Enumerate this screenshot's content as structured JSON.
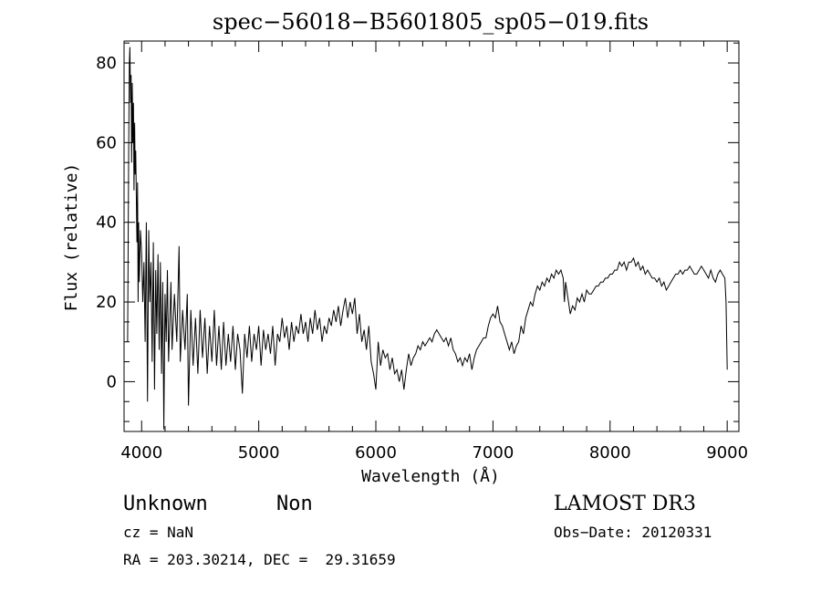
{
  "chart_data": {
    "type": "line",
    "title": "spec−56018−B5601805_sp05−019.fits",
    "xlabel": "Wavelength (Å)",
    "ylabel": "Flux (relative)",
    "xlim": [
      3850,
      9100
    ],
    "ylim": [
      -12.5,
      85.5
    ],
    "x_ticks": [
      4000,
      5000,
      6000,
      7000,
      8000,
      9000
    ],
    "y_ticks": [
      0,
      20,
      40,
      60,
      80
    ],
    "grid": false,
    "series": [
      {
        "values": [
          [
            3880,
            10
          ],
          [
            3890,
            60
          ],
          [
            3895,
            80
          ],
          [
            3900,
            84
          ],
          [
            3905,
            70
          ],
          [
            3910,
            77
          ],
          [
            3915,
            55
          ],
          [
            3920,
            75
          ],
          [
            3925,
            60
          ],
          [
            3930,
            70
          ],
          [
            3935,
            48
          ],
          [
            3940,
            65
          ],
          [
            3945,
            52
          ],
          [
            3950,
            58
          ],
          [
            3960,
            35
          ],
          [
            3965,
            50
          ],
          [
            3970,
            20
          ],
          [
            3975,
            40
          ],
          [
            3980,
            25
          ],
          [
            3990,
            38
          ],
          [
            4000,
            32
          ],
          [
            4010,
            20
          ],
          [
            4020,
            30
          ],
          [
            4030,
            10
          ],
          [
            4040,
            40
          ],
          [
            4050,
            -5
          ],
          [
            4060,
            38
          ],
          [
            4070,
            20
          ],
          [
            4080,
            30
          ],
          [
            4090,
            5
          ],
          [
            4100,
            35
          ],
          [
            4110,
            -2
          ],
          [
            4120,
            28
          ],
          [
            4130,
            12
          ],
          [
            4140,
            32
          ],
          [
            4150,
            8
          ],
          [
            4160,
            30
          ],
          [
            4170,
            2
          ],
          [
            4180,
            25
          ],
          [
            4190,
            -12
          ],
          [
            4200,
            22
          ],
          [
            4210,
            10
          ],
          [
            4220,
            28
          ],
          [
            4230,
            5
          ],
          [
            4250,
            25
          ],
          [
            4260,
            8
          ],
          [
            4280,
            22
          ],
          [
            4300,
            10
          ],
          [
            4320,
            34
          ],
          [
            4330,
            5
          ],
          [
            4350,
            18
          ],
          [
            4370,
            8
          ],
          [
            4390,
            22
          ],
          [
            4400,
            -6
          ],
          [
            4420,
            18
          ],
          [
            4440,
            4
          ],
          [
            4460,
            16
          ],
          [
            4480,
            2
          ],
          [
            4500,
            18
          ],
          [
            4520,
            6
          ],
          [
            4540,
            16
          ],
          [
            4560,
            2
          ],
          [
            4580,
            14
          ],
          [
            4600,
            5
          ],
          [
            4620,
            18
          ],
          [
            4640,
            4
          ],
          [
            4660,
            14
          ],
          [
            4680,
            3
          ],
          [
            4700,
            15
          ],
          [
            4720,
            4
          ],
          [
            4740,
            12
          ],
          [
            4760,
            5
          ],
          [
            4780,
            14
          ],
          [
            4800,
            3
          ],
          [
            4820,
            12
          ],
          [
            4840,
            8
          ],
          [
            4860,
            -3
          ],
          [
            4880,
            12
          ],
          [
            4900,
            6
          ],
          [
            4920,
            14
          ],
          [
            4940,
            5
          ],
          [
            4960,
            12
          ],
          [
            4980,
            8
          ],
          [
            5000,
            14
          ],
          [
            5020,
            4
          ],
          [
            5040,
            13
          ],
          [
            5060,
            8
          ],
          [
            5080,
            12
          ],
          [
            5100,
            7
          ],
          [
            5120,
            14
          ],
          [
            5140,
            4
          ],
          [
            5160,
            12
          ],
          [
            5180,
            10
          ],
          [
            5200,
            16
          ],
          [
            5220,
            11
          ],
          [
            5240,
            14
          ],
          [
            5260,
            8
          ],
          [
            5280,
            15
          ],
          [
            5300,
            10
          ],
          [
            5320,
            14
          ],
          [
            5340,
            12
          ],
          [
            5360,
            17
          ],
          [
            5380,
            12
          ],
          [
            5400,
            15
          ],
          [
            5420,
            10
          ],
          [
            5440,
            16
          ],
          [
            5460,
            12
          ],
          [
            5480,
            18
          ],
          [
            5500,
            13
          ],
          [
            5520,
            16
          ],
          [
            5540,
            10
          ],
          [
            5560,
            14
          ],
          [
            5580,
            12
          ],
          [
            5600,
            16
          ],
          [
            5620,
            14
          ],
          [
            5640,
            18
          ],
          [
            5660,
            15
          ],
          [
            5680,
            19
          ],
          [
            5700,
            14
          ],
          [
            5720,
            18
          ],
          [
            5740,
            21
          ],
          [
            5760,
            16
          ],
          [
            5780,
            20
          ],
          [
            5800,
            17
          ],
          [
            5820,
            21
          ],
          [
            5840,
            12
          ],
          [
            5860,
            17
          ],
          [
            5880,
            10
          ],
          [
            5900,
            13
          ],
          [
            5920,
            8
          ],
          [
            5940,
            14
          ],
          [
            5960,
            5
          ],
          [
            5980,
            2
          ],
          [
            6000,
            -2
          ],
          [
            6020,
            10
          ],
          [
            6040,
            4
          ],
          [
            6060,
            8
          ],
          [
            6080,
            6
          ],
          [
            6100,
            7
          ],
          [
            6120,
            3
          ],
          [
            6140,
            6
          ],
          [
            6160,
            2
          ],
          [
            6180,
            3
          ],
          [
            6200,
            0
          ],
          [
            6220,
            3
          ],
          [
            6240,
            -2
          ],
          [
            6260,
            3
          ],
          [
            6280,
            7
          ],
          [
            6300,
            4
          ],
          [
            6320,
            6
          ],
          [
            6340,
            7
          ],
          [
            6360,
            9
          ],
          [
            6380,
            8
          ],
          [
            6400,
            10
          ],
          [
            6420,
            9
          ],
          [
            6440,
            10
          ],
          [
            6460,
            11
          ],
          [
            6480,
            10
          ],
          [
            6500,
            12
          ],
          [
            6520,
            13
          ],
          [
            6540,
            12
          ],
          [
            6560,
            11
          ],
          [
            6580,
            10
          ],
          [
            6600,
            11
          ],
          [
            6620,
            9
          ],
          [
            6640,
            11
          ],
          [
            6660,
            8
          ],
          [
            6680,
            7
          ],
          [
            6700,
            5
          ],
          [
            6720,
            6
          ],
          [
            6740,
            4
          ],
          [
            6760,
            6
          ],
          [
            6780,
            5
          ],
          [
            6800,
            7
          ],
          [
            6820,
            3
          ],
          [
            6840,
            6
          ],
          [
            6860,
            8
          ],
          [
            6880,
            9
          ],
          [
            6900,
            10
          ],
          [
            6920,
            11
          ],
          [
            6940,
            11
          ],
          [
            6960,
            14
          ],
          [
            6980,
            16
          ],
          [
            7000,
            17
          ],
          [
            7020,
            16
          ],
          [
            7040,
            19
          ],
          [
            7060,
            15
          ],
          [
            7080,
            14
          ],
          [
            7100,
            12
          ],
          [
            7120,
            10
          ],
          [
            7140,
            8
          ],
          [
            7160,
            10
          ],
          [
            7180,
            7
          ],
          [
            7200,
            9
          ],
          [
            7220,
            10
          ],
          [
            7240,
            14
          ],
          [
            7260,
            12
          ],
          [
            7280,
            16
          ],
          [
            7300,
            18
          ],
          [
            7320,
            20
          ],
          [
            7340,
            19
          ],
          [
            7360,
            22
          ],
          [
            7380,
            24
          ],
          [
            7400,
            23
          ],
          [
            7420,
            25
          ],
          [
            7440,
            24
          ],
          [
            7460,
            26
          ],
          [
            7480,
            25
          ],
          [
            7500,
            27
          ],
          [
            7520,
            26
          ],
          [
            7540,
            28
          ],
          [
            7560,
            27
          ],
          [
            7580,
            28
          ],
          [
            7600,
            26
          ],
          [
            7610,
            20
          ],
          [
            7620,
            25
          ],
          [
            7640,
            21
          ],
          [
            7660,
            17
          ],
          [
            7680,
            19
          ],
          [
            7700,
            18
          ],
          [
            7720,
            21
          ],
          [
            7740,
            20
          ],
          [
            7760,
            22
          ],
          [
            7780,
            20
          ],
          [
            7800,
            23
          ],
          [
            7820,
            22
          ],
          [
            7840,
            22
          ],
          [
            7860,
            23
          ],
          [
            7880,
            24
          ],
          [
            7900,
            24
          ],
          [
            7920,
            25
          ],
          [
            7940,
            25
          ],
          [
            7960,
            26
          ],
          [
            7980,
            26
          ],
          [
            8000,
            27
          ],
          [
            8020,
            27
          ],
          [
            8040,
            28
          ],
          [
            8060,
            28
          ],
          [
            8080,
            30
          ],
          [
            8100,
            29
          ],
          [
            8120,
            30
          ],
          [
            8140,
            28
          ],
          [
            8160,
            30
          ],
          [
            8180,
            30
          ],
          [
            8200,
            31
          ],
          [
            8220,
            29
          ],
          [
            8240,
            30
          ],
          [
            8260,
            28
          ],
          [
            8280,
            29
          ],
          [
            8300,
            27
          ],
          [
            8320,
            28
          ],
          [
            8340,
            27
          ],
          [
            8360,
            26
          ],
          [
            8380,
            26
          ],
          [
            8400,
            25
          ],
          [
            8420,
            26
          ],
          [
            8440,
            24
          ],
          [
            8460,
            25
          ],
          [
            8480,
            23
          ],
          [
            8500,
            24
          ],
          [
            8520,
            25
          ],
          [
            8540,
            26
          ],
          [
            8560,
            27
          ],
          [
            8580,
            27
          ],
          [
            8600,
            28
          ],
          [
            8620,
            27
          ],
          [
            8640,
            28
          ],
          [
            8660,
            28
          ],
          [
            8680,
            29
          ],
          [
            8700,
            28
          ],
          [
            8720,
            27
          ],
          [
            8740,
            27
          ],
          [
            8760,
            28
          ],
          [
            8780,
            29
          ],
          [
            8800,
            28
          ],
          [
            8820,
            27
          ],
          [
            8840,
            26
          ],
          [
            8860,
            28
          ],
          [
            8880,
            26
          ],
          [
            8900,
            25
          ],
          [
            8920,
            27
          ],
          [
            8940,
            28
          ],
          [
            8960,
            27
          ],
          [
            8980,
            26
          ],
          [
            8990,
            20
          ],
          [
            9000,
            3
          ]
        ]
      }
    ]
  },
  "annotations": {
    "object_class": "Unknown",
    "subclass": "Non",
    "survey": "LAMOST DR3",
    "redshift_line": "cz = NaN",
    "obs_date_line": "Obs−Date: 20120331",
    "coords_line": "RA = 203.30214, DEC =  29.31659"
  }
}
